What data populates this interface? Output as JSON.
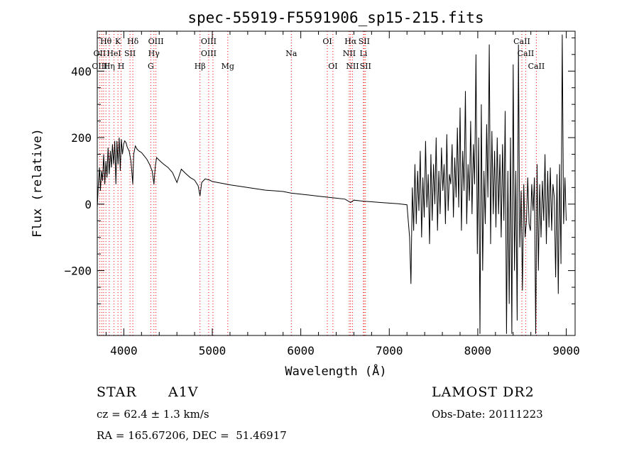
{
  "chart_data": {
    "type": "line",
    "title": "spec-55919-F5591906_sp15-215.fits",
    "xlabel": "Wavelength (Å)",
    "ylabel": "Flux (relative)",
    "xlim": [
      3700,
      9100
    ],
    "ylim": [
      -395,
      520
    ],
    "xticks": [
      4000,
      5000,
      6000,
      7000,
      8000,
      9000
    ],
    "yticks": [
      -200,
      0,
      200,
      400
    ],
    "grid": false,
    "line_color": "#000000",
    "marker_color": "#ff0000",
    "series": [
      {
        "x": [
          3700,
          3712,
          3725,
          3735,
          3748,
          3760,
          3772,
          3785,
          3798,
          3810,
          3822,
          3835,
          3848,
          3860,
          3872,
          3885,
          3898,
          3910,
          3922,
          3935,
          3948,
          3960,
          3972,
          3985,
          3998,
          4010,
          4025,
          4040,
          4060,
          4080,
          4090,
          4101,
          4112,
          4130,
          4150,
          4170,
          4200,
          4230,
          4260,
          4290,
          4320,
          4340,
          4355,
          4370,
          4400,
          4450,
          4500,
          4550,
          4600,
          4650,
          4700,
          4750,
          4800,
          4840,
          4861,
          4880,
          4920,
          4970,
          5000,
          5100,
          5200,
          5300,
          5400,
          5500,
          5600,
          5700,
          5800,
          5890,
          6000,
          6100,
          6200,
          6300,
          6400,
          6500,
          6563,
          6600,
          6700,
          6800,
          6900,
          7000,
          7100,
          7200,
          7230,
          7245,
          7260,
          7275,
          7290,
          7305,
          7320,
          7335,
          7350,
          7365,
          7380,
          7395,
          7410,
          7425,
          7440,
          7455,
          7470,
          7485,
          7500,
          7515,
          7530,
          7545,
          7560,
          7575,
          7590,
          7605,
          7620,
          7635,
          7650,
          7665,
          7680,
          7695,
          7710,
          7725,
          7740,
          7755,
          7770,
          7785,
          7800,
          7815,
          7830,
          7845,
          7860,
          7875,
          7890,
          7905,
          7920,
          7935,
          7950,
          7965,
          7980,
          7995,
          8010,
          8025,
          8040,
          8055,
          8070,
          8085,
          8100,
          8115,
          8130,
          8145,
          8160,
          8175,
          8190,
          8205,
          8220,
          8235,
          8250,
          8265,
          8280,
          8295,
          8310,
          8325,
          8340,
          8355,
          8370,
          8385,
          8400,
          8415,
          8430,
          8445,
          8460,
          8475,
          8490,
          8505,
          8520,
          8535,
          8550,
          8565,
          8580,
          8595,
          8610,
          8625,
          8640,
          8655,
          8670,
          8685,
          8700,
          8715,
          8730,
          8745,
          8760,
          8775,
          8790,
          8805,
          8820,
          8835,
          8850,
          8865,
          8880,
          8895,
          8910,
          8925,
          8940,
          8955,
          8970,
          8985,
          9000
        ],
        "y": [
          -10,
          60,
          110,
          40,
          100,
          70,
          150,
          60,
          130,
          80,
          170,
          90,
          160,
          110,
          180,
          120,
          190,
          60,
          190,
          120,
          200,
          100,
          195,
          150,
          180,
          190,
          185,
          170,
          160,
          130,
          100,
          60,
          150,
          175,
          165,
          160,
          155,
          145,
          135,
          120,
          100,
          60,
          110,
          140,
          132,
          120,
          110,
          95,
          65,
          105,
          92,
          80,
          72,
          55,
          25,
          65,
          76,
          72,
          68,
          63,
          58,
          54,
          50,
          46,
          42,
          40,
          38,
          33,
          30,
          27,
          24,
          21,
          18,
          15,
          5,
          12,
          9,
          7,
          5,
          3,
          1,
          -2,
          -100,
          -240,
          50,
          -80,
          120,
          -60,
          100,
          -20,
          160,
          -100,
          80,
          -40,
          190,
          -10,
          90,
          -120,
          150,
          -50,
          120,
          0,
          200,
          -80,
          100,
          -30,
          170,
          40,
          120,
          -60,
          210,
          -20,
          90,
          60,
          180,
          -40,
          140,
          20,
          230,
          -10,
          290,
          -80,
          160,
          40,
          340,
          -60,
          120,
          10,
          250,
          -30,
          180,
          60,
          450,
          -150,
          200,
          -390,
          300,
          -200,
          100,
          -60,
          240,
          20,
          480,
          -120,
          220,
          -30,
          160,
          -70,
          200,
          -30,
          150,
          -100,
          180,
          -50,
          280,
          -390,
          100,
          -300,
          200,
          -390,
          420,
          -200,
          100,
          -350,
          480,
          -130,
          40,
          -260,
          60,
          -100,
          -50,
          80,
          -60,
          -80,
          60,
          -20,
          80,
          -390,
          120,
          -200,
          60,
          -100,
          70,
          -50,
          150,
          -120,
          100,
          -70,
          110,
          -80,
          60,
          20,
          -220,
          90,
          -270,
          120,
          -180,
          510,
          -60,
          80,
          -50
        ]
      }
    ],
    "line_labels": [
      {
        "name": "Hθ",
        "x": 3798,
        "row": 1
      },
      {
        "name": "K",
        "x": 3934,
        "row": 1
      },
      {
        "name": "Hδ",
        "x": 4102,
        "row": 1
      },
      {
        "name": "OIII",
        "x": 4363,
        "row": 1
      },
      {
        "name": "OIII",
        "x": 4959,
        "row": 1
      },
      {
        "name": "OI",
        "x": 6300,
        "row": 1
      },
      {
        "name": "Hα",
        "x": 6563,
        "row": 1
      },
      {
        "name": "SII",
        "x": 6716,
        "row": 1
      },
      {
        "name": "CaII",
        "x": 8498,
        "row": 1
      },
      {
        "name": "OII",
        "x": 3727,
        "row": 2
      },
      {
        "name": "HeI",
        "x": 3889,
        "row": 2
      },
      {
        "name": "SII",
        "x": 4070,
        "row": 2
      },
      {
        "name": "Hγ",
        "x": 4340,
        "row": 2
      },
      {
        "name": "OIII",
        "x": 4959,
        "row": 2
      },
      {
        "name": "Na",
        "x": 5893,
        "row": 2
      },
      {
        "name": "NII",
        "x": 6548,
        "row": 2
      },
      {
        "name": "Li",
        "x": 6708,
        "row": 2
      },
      {
        "name": "CaII",
        "x": 8542,
        "row": 2
      },
      {
        "name": "OIII",
        "x": 3727,
        "row": 3
      },
      {
        "name": "Hη",
        "x": 3835,
        "row": 3
      },
      {
        "name": "H",
        "x": 3969,
        "row": 3
      },
      {
        "name": "G",
        "x": 4305,
        "row": 3
      },
      {
        "name": "Hβ",
        "x": 4861,
        "row": 3
      },
      {
        "name": "Mg",
        "x": 5175,
        "row": 3
      },
      {
        "name": "OI",
        "x": 6363,
        "row": 3
      },
      {
        "name": "NII",
        "x": 6584,
        "row": 3
      },
      {
        "name": "SII",
        "x": 6731,
        "row": 3
      },
      {
        "name": "CaII",
        "x": 8662,
        "row": 3
      }
    ],
    "marker_positions": [
      3727,
      3750,
      3771,
      3798,
      3835,
      3889,
      3934,
      3969,
      4070,
      4102,
      4305,
      4340,
      4363,
      4861,
      4959,
      5007,
      5175,
      5893,
      6300,
      6363,
      6548,
      6563,
      6584,
      6708,
      6716,
      6731,
      8498,
      8542,
      8662
    ]
  },
  "info": {
    "object_class": "STAR",
    "subclass": "A1V",
    "survey": "LAMOST DR2",
    "cz": "cz = 62.4 ± 1.3 km/s",
    "obs_date": "Obs-Date: 20111223",
    "coords": "RA = 165.67206, DEC =  51.46917"
  }
}
